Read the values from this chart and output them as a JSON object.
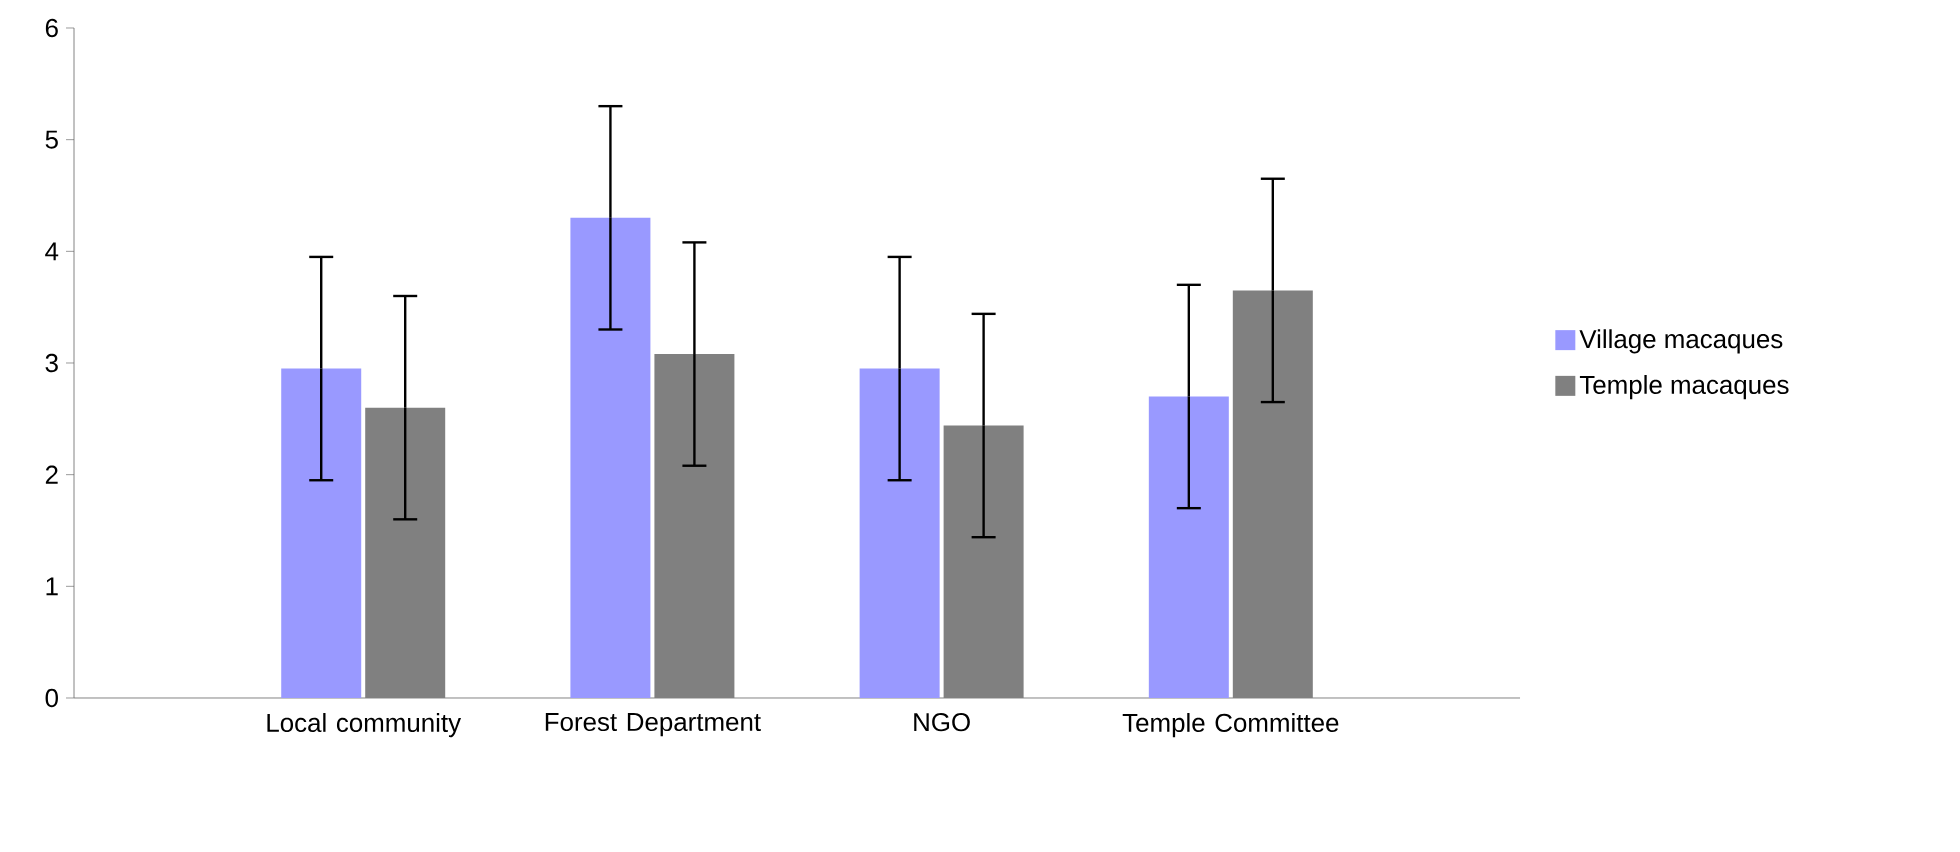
{
  "chart_data": {
    "type": "bar",
    "categories": [
      "Local community",
      "Forest Department",
      "NGO",
      "Temple Committee"
    ],
    "series": [
      {
        "name": "Village macaques",
        "color": "#9999ff",
        "values": [
          2.95,
          4.3,
          2.95,
          2.7
        ],
        "errors": [
          1,
          1,
          1,
          1
        ]
      },
      {
        "name": "Temple macaques",
        "color": "#808080",
        "values": [
          2.6,
          3.08,
          2.44,
          3.65
        ],
        "errors": [
          1,
          1,
          1,
          1
        ]
      }
    ],
    "ylim": [
      0,
      6
    ],
    "yticks": [
      0,
      1,
      2,
      3,
      4,
      5,
      6
    ],
    "grid": false,
    "legend": "right"
  }
}
